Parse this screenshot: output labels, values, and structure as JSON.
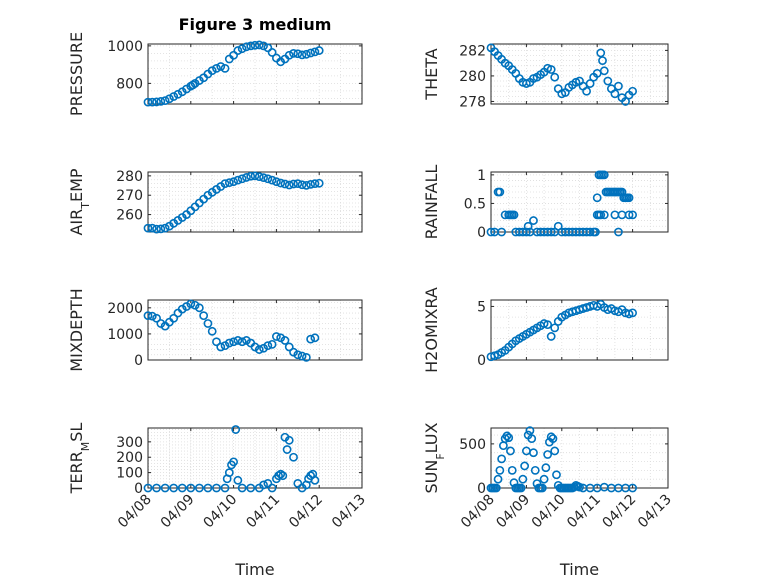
{
  "chart_data": [
    {
      "type": "scatter",
      "title": "Figure 3 medium",
      "xlabel": "",
      "ylabel": "PRESSURE",
      "xlim": [
        "04/08",
        "04/13"
      ],
      "xticks": [
        "04/08",
        "04/09",
        "04/10",
        "04/11",
        "04/12",
        "04/13"
      ],
      "ylim": [
        690,
        1010
      ],
      "yticks": [
        800,
        1000
      ],
      "grid": true,
      "series": [
        {
          "x": [
            0,
            0.1,
            0.2,
            0.3,
            0.4,
            0.5,
            0.6,
            0.7,
            0.8,
            0.9,
            1.0,
            1.05,
            1.1,
            1.2,
            1.3,
            1.4,
            1.5,
            1.6,
            1.7,
            1.8,
            1.9,
            2.0,
            2.1,
            2.2,
            2.3,
            2.4,
            2.5,
            2.6,
            2.7,
            2.8,
            2.9,
            3.0,
            3.1,
            3.2,
            3.3,
            3.4,
            3.5,
            3.6,
            3.7,
            3.8,
            3.9,
            4.0
          ],
          "y": [
            700,
            700,
            701,
            704,
            708,
            718,
            730,
            742,
            755,
            770,
            785,
            792,
            800,
            815,
            830,
            850,
            868,
            880,
            890,
            880,
            930,
            950,
            975,
            985,
            995,
            1000,
            1003,
            1005,
            1000,
            990,
            965,
            935,
            915,
            930,
            950,
            960,
            958,
            952,
            955,
            962,
            968,
            975
          ]
        }
      ]
    },
    {
      "type": "scatter",
      "title": "",
      "xlabel": "",
      "ylabel": "THETA",
      "xlim": [
        "04/08",
        "04/13"
      ],
      "xticks": [
        "04/08",
        "04/09",
        "04/10",
        "04/11",
        "04/12",
        "04/13"
      ],
      "ylim": [
        277.8,
        282.5
      ],
      "yticks": [
        278,
        280,
        282
      ],
      "grid": true,
      "series": [
        {
          "x": [
            0,
            0.1,
            0.2,
            0.3,
            0.4,
            0.5,
            0.6,
            0.7,
            0.8,
            0.9,
            1.0,
            1.1,
            1.2,
            1.3,
            1.4,
            1.5,
            1.6,
            1.7,
            1.8,
            1.9,
            2.0,
            2.1,
            2.2,
            2.3,
            2.4,
            2.5,
            2.6,
            2.7,
            2.8,
            2.9,
            3.0,
            3.1,
            3.15,
            3.2,
            3.3,
            3.4,
            3.5,
            3.6,
            3.7,
            3.8,
            3.9,
            4.0
          ],
          "y": [
            282.2,
            281.9,
            281.6,
            281.3,
            281.0,
            280.8,
            280.5,
            280.2,
            279.8,
            279.5,
            279.4,
            279.5,
            279.8,
            279.9,
            280.1,
            280.3,
            280.6,
            280.5,
            279.9,
            279.0,
            278.6,
            278.7,
            279.1,
            279.3,
            279.5,
            279.6,
            279.2,
            278.8,
            279.4,
            279.9,
            280.2,
            281.8,
            281.2,
            280.4,
            279.6,
            279.0,
            278.6,
            279.2,
            278.3,
            278.0,
            278.5,
            278.8
          ]
        }
      ]
    },
    {
      "type": "scatter",
      "title": "",
      "xlabel": "",
      "ylabel": "AIR_TEMP",
      "xlim": [
        "04/08",
        "04/13"
      ],
      "xticks": [
        "04/08",
        "04/09",
        "04/10",
        "04/11",
        "04/12",
        "04/13"
      ],
      "ylim": [
        251,
        282
      ],
      "yticks": [
        260,
        270,
        280
      ],
      "grid": true,
      "series": [
        {
          "x": [
            0,
            0.1,
            0.2,
            0.3,
            0.4,
            0.5,
            0.6,
            0.7,
            0.8,
            0.9,
            1.0,
            1.1,
            1.2,
            1.3,
            1.4,
            1.5,
            1.6,
            1.7,
            1.8,
            1.9,
            2.0,
            2.1,
            2.2,
            2.3,
            2.4,
            2.5,
            2.6,
            2.7,
            2.8,
            2.9,
            3.0,
            3.1,
            3.2,
            3.3,
            3.4,
            3.5,
            3.6,
            3.7,
            3.8,
            3.9,
            4.0
          ],
          "y": [
            253,
            253,
            252.5,
            252.6,
            253,
            254,
            255.5,
            257,
            258.5,
            260,
            262,
            264,
            266,
            268,
            270,
            271.5,
            273,
            274.5,
            276,
            276.5,
            277,
            277.8,
            278.5,
            279.2,
            279.8,
            280,
            279.6,
            279.1,
            278.5,
            277.8,
            277,
            276.3,
            275.8,
            275.3,
            275.8,
            276,
            275.4,
            275.1,
            275.6,
            276,
            276.2
          ]
        }
      ]
    },
    {
      "type": "scatter",
      "title": "",
      "xlabel": "",
      "ylabel": "RAINFALL",
      "xlim": [
        "04/08",
        "04/13"
      ],
      "xticks": [
        "04/08",
        "04/09",
        "04/10",
        "04/11",
        "04/12",
        "04/13"
      ],
      "ylim": [
        0,
        1.05
      ],
      "yticks": [
        0,
        0.5,
        1
      ],
      "grid": true,
      "series": [
        {
          "x": [
            0,
            0.1,
            0.2,
            0.25,
            0.3,
            0.4,
            0.5,
            0.55,
            0.6,
            0.65,
            0.7,
            0.8,
            0.9,
            1.0,
            1.05,
            1.1,
            1.2,
            1.3,
            1.4,
            1.5,
            1.6,
            1.7,
            1.8,
            1.9,
            2.0,
            2.1,
            2.2,
            2.3,
            2.4,
            2.5,
            2.6,
            2.7,
            2.8,
            2.9,
            2.95,
            3.0,
            3.05,
            3.1,
            3.15,
            3.2,
            3.25,
            3.3,
            3.35,
            3.4,
            3.45,
            3.5,
            3.55,
            3.6,
            3.65,
            3.7,
            3.75,
            3.8,
            3.85,
            3.9,
            4.0,
            3.0,
            3.05,
            3.1,
            3.2,
            3.5,
            3.6,
            3.7,
            3.8,
            3.9
          ],
          "y": [
            0,
            0,
            0.7,
            0.7,
            0,
            0.3,
            0.3,
            0.3,
            0.3,
            0.3,
            0,
            0,
            0,
            0,
            0.1,
            0,
            0.2,
            0,
            0,
            0,
            0,
            0,
            0,
            0.1,
            0,
            0,
            0,
            0,
            0,
            0,
            0,
            0,
            0,
            0,
            0,
            0.3,
            1.0,
            1.0,
            1.0,
            1.0,
            0.7,
            0.7,
            0.7,
            0.7,
            0.7,
            0.7,
            0.7,
            0.7,
            0.7,
            0.7,
            0.6,
            0.6,
            0.6,
            0.3,
            0.3,
            0.6,
            0.3,
            0.3,
            0.3,
            0.3,
            0,
            0.3,
            0.6,
            0.6
          ]
        }
      ]
    },
    {
      "type": "scatter",
      "title": "",
      "xlabel": "",
      "ylabel": "MIXDEPTH",
      "xlim": [
        "04/08",
        "04/13"
      ],
      "xticks": [
        "04/08",
        "04/09",
        "04/10",
        "04/11",
        "04/12",
        "04/13"
      ],
      "ylim": [
        0,
        2300
      ],
      "yticks": [
        0,
        1000,
        2000
      ],
      "grid": true,
      "series": [
        {
          "x": [
            0,
            0.1,
            0.2,
            0.3,
            0.4,
            0.5,
            0.6,
            0.7,
            0.8,
            0.9,
            1.0,
            1.1,
            1.2,
            1.3,
            1.4,
            1.5,
            1.6,
            1.7,
            1.8,
            1.9,
            2.0,
            2.1,
            2.2,
            2.3,
            2.4,
            2.5,
            2.6,
            2.7,
            2.8,
            2.9,
            3.0,
            3.1,
            3.2,
            3.3,
            3.4,
            3.5,
            3.6,
            3.7,
            3.8,
            3.9
          ],
          "y": [
            1700,
            1680,
            1600,
            1400,
            1300,
            1450,
            1600,
            1800,
            1950,
            2050,
            2150,
            2100,
            2000,
            1700,
            1400,
            1100,
            700,
            500,
            550,
            650,
            700,
            750,
            700,
            750,
            650,
            500,
            400,
            450,
            550,
            600,
            900,
            850,
            750,
            500,
            300,
            200,
            150,
            100,
            800,
            850
          ]
        }
      ]
    },
    {
      "type": "scatter",
      "title": "",
      "xlabel": "",
      "ylabel": "H2OMIXRA",
      "xlim": [
        "04/08",
        "04/13"
      ],
      "xticks": [
        "04/08",
        "04/09",
        "04/10",
        "04/11",
        "04/12",
        "04/13"
      ],
      "ylim": [
        0,
        5.6
      ],
      "yticks": [
        0,
        5
      ],
      "grid": true,
      "series": [
        {
          "x": [
            0,
            0.1,
            0.2,
            0.3,
            0.4,
            0.5,
            0.6,
            0.7,
            0.8,
            0.9,
            1.0,
            1.1,
            1.2,
            1.3,
            1.4,
            1.5,
            1.6,
            1.7,
            1.8,
            1.9,
            2.0,
            2.1,
            2.2,
            2.3,
            2.4,
            2.5,
            2.6,
            2.7,
            2.8,
            2.9,
            3.0,
            3.1,
            3.2,
            3.3,
            3.4,
            3.5,
            3.6,
            3.7,
            3.8,
            3.9,
            4.0
          ],
          "y": [
            0.3,
            0.4,
            0.5,
            0.7,
            0.9,
            1.2,
            1.5,
            1.8,
            2.0,
            2.2,
            2.4,
            2.6,
            2.8,
            3.0,
            3.2,
            3.4,
            3.3,
            2.2,
            3.0,
            3.6,
            4.0,
            4.2,
            4.4,
            4.5,
            4.6,
            4.7,
            4.8,
            4.9,
            5.0,
            5.1,
            5.0,
            5.2,
            4.9,
            4.7,
            4.8,
            4.6,
            4.5,
            4.7,
            4.4,
            4.3,
            4.4
          ]
        }
      ]
    },
    {
      "type": "scatter",
      "title": "",
      "xlabel": "Time",
      "ylabel": "TERR_MSL",
      "xlim": [
        "04/08",
        "04/13"
      ],
      "xticks": [
        "04/08",
        "04/09",
        "04/10",
        "04/11",
        "04/12",
        "04/13"
      ],
      "ylim": [
        0,
        390
      ],
      "yticks": [
        0,
        100,
        200,
        300
      ],
      "grid": true,
      "series": [
        {
          "x": [
            0,
            0.2,
            0.4,
            0.6,
            0.8,
            1.0,
            1.2,
            1.4,
            1.6,
            1.8,
            1.85,
            1.9,
            1.95,
            2.0,
            2.05,
            2.1,
            2.2,
            2.4,
            2.6,
            2.7,
            2.8,
            2.9,
            3.0,
            3.05,
            3.1,
            3.15,
            3.2,
            3.25,
            3.3,
            3.4,
            3.5,
            3.6,
            3.7,
            3.75,
            3.8,
            3.85,
            3.9
          ],
          "y": [
            0,
            0,
            0,
            0,
            0,
            0,
            0,
            0,
            0,
            0,
            60,
            100,
            150,
            170,
            380,
            50,
            0,
            0,
            0,
            20,
            30,
            0,
            60,
            80,
            90,
            80,
            330,
            250,
            310,
            200,
            30,
            0,
            20,
            60,
            80,
            90,
            50
          ]
        }
      ]
    },
    {
      "type": "scatter",
      "title": "",
      "xlabel": "Time",
      "ylabel": "SUN_FLUX",
      "xlim": [
        "04/08",
        "04/13"
      ],
      "xticks": [
        "04/08",
        "04/09",
        "04/10",
        "04/11",
        "04/12",
        "04/13"
      ],
      "ylim": [
        0,
        680
      ],
      "yticks": [
        0,
        500
      ],
      "grid": true,
      "series": [
        {
          "x": [
            0,
            0.05,
            0.1,
            0.15,
            0.2,
            0.25,
            0.3,
            0.35,
            0.4,
            0.45,
            0.5,
            0.55,
            0.6,
            0.65,
            0.7,
            0.75,
            0.8,
            0.85,
            0.9,
            0.95,
            1.0,
            1.05,
            1.1,
            1.15,
            1.2,
            1.25,
            1.3,
            1.35,
            1.4,
            1.45,
            1.5,
            1.55,
            1.6,
            1.65,
            1.7,
            1.75,
            1.8,
            1.85,
            1.9,
            1.95,
            2.0,
            2.05,
            2.1,
            2.15,
            2.2,
            2.25,
            2.3,
            2.35,
            2.4,
            2.45,
            2.5,
            2.6,
            2.8,
            3.0,
            3.2,
            3.4,
            3.6,
            3.8,
            4.0
          ],
          "y": [
            0,
            0,
            0,
            0,
            100,
            200,
            330,
            480,
            560,
            590,
            570,
            420,
            200,
            60,
            0,
            0,
            0,
            0,
            100,
            250,
            420,
            600,
            650,
            560,
            400,
            200,
            50,
            0,
            0,
            0,
            100,
            230,
            380,
            520,
            580,
            560,
            420,
            150,
            30,
            0,
            0,
            0,
            0,
            0,
            0,
            0,
            0,
            10,
            30,
            20,
            10,
            0,
            0,
            0,
            10,
            0,
            0,
            0,
            0
          ]
        }
      ]
    }
  ]
}
